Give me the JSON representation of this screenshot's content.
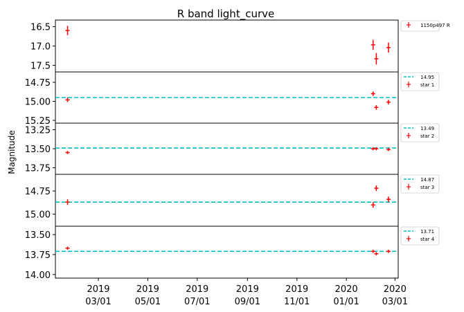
{
  "chart_data": {
    "type": "scatter",
    "title": "R band light_curve",
    "ylabel": "Magnitude",
    "x_range": [
      "2019-01-07",
      "2020-03-05"
    ],
    "x_ticks": [
      {
        "date": "2019-03-01",
        "label": [
          "2019",
          "03/01"
        ]
      },
      {
        "date": "2019-05-01",
        "label": [
          "2019",
          "05/01"
        ]
      },
      {
        "date": "2019-07-01",
        "label": [
          "2019",
          "07/01"
        ]
      },
      {
        "date": "2019-09-01",
        "label": [
          "2019",
          "09/01"
        ]
      },
      {
        "date": "2019-11-01",
        "label": [
          "2019",
          "11/01"
        ]
      },
      {
        "date": "2020-01-01",
        "label": [
          "2020",
          "01/01"
        ]
      },
      {
        "date": "2020-03-01",
        "label": [
          "2020",
          "03/01"
        ]
      }
    ],
    "y_inverted": true,
    "panels": [
      {
        "series_name": "1150p497 R",
        "ylim": [
          16.4,
          17.6
        ],
        "yticks": [
          16.5,
          17.0,
          17.5
        ],
        "ytick_labels": [
          "16.5",
          "17.0",
          "17.5"
        ],
        "points": [
          {
            "x": "2019-01-22",
            "y": 16.6,
            "yerr": 0.12
          },
          {
            "x": "2020-02-03",
            "y": 16.97,
            "yerr": 0.13
          },
          {
            "x": "2020-02-07",
            "y": 17.33,
            "yerr": 0.15
          },
          {
            "x": "2020-02-22",
            "y": 17.04,
            "yerr": 0.13
          }
        ]
      },
      {
        "series_name": "star 1",
        "reference": 14.95,
        "reference_label": "14.95",
        "ylim": [
          14.65,
          15.25
        ],
        "yticks": [
          14.75,
          15.0,
          15.25
        ],
        "ytick_labels": [
          "14.75",
          "15.00",
          "15.25"
        ],
        "points": [
          {
            "x": "2019-01-22",
            "y": 14.98,
            "yerr": 0.03
          },
          {
            "x": "2020-02-03",
            "y": 14.9,
            "yerr": 0.03
          },
          {
            "x": "2020-02-07",
            "y": 15.08,
            "yerr": 0.03
          },
          {
            "x": "2020-02-22",
            "y": 15.01,
            "yerr": 0.03
          }
        ]
      },
      {
        "series_name": "star 2",
        "reference": 13.49,
        "reference_label": "13.49",
        "ylim": [
          13.2,
          13.8
        ],
        "yticks": [
          13.25,
          13.5,
          13.75
        ],
        "ytick_labels": [
          "13.25",
          "13.50",
          "13.75"
        ],
        "points": [
          {
            "x": "2019-01-22",
            "y": 13.55,
            "yerr": 0.02
          },
          {
            "x": "2020-02-03",
            "y": 13.5,
            "yerr": 0.02
          },
          {
            "x": "2020-02-07",
            "y": 13.5,
            "yerr": 0.02
          },
          {
            "x": "2020-02-22",
            "y": 13.51,
            "yerr": 0.02
          }
        ]
      },
      {
        "series_name": "star 3",
        "reference": 14.87,
        "reference_label": "14.87",
        "ylim": [
          14.6,
          15.1
        ],
        "yticks": [
          14.75,
          15.0
        ],
        "ytick_labels": [
          "14.75",
          "15.00"
        ],
        "points": [
          {
            "x": "2019-01-22",
            "y": 14.87,
            "yerr": 0.03
          },
          {
            "x": "2020-02-03",
            "y": 14.9,
            "yerr": 0.03
          },
          {
            "x": "2020-02-07",
            "y": 14.72,
            "yerr": 0.03
          },
          {
            "x": "2020-02-22",
            "y": 14.84,
            "yerr": 0.03
          }
        ]
      },
      {
        "series_name": "star 4",
        "reference": 13.71,
        "reference_label": "13.71",
        "ylim": [
          13.43,
          14.01
        ],
        "yticks": [
          13.5,
          13.75,
          14.0
        ],
        "ytick_labels": [
          "13.50",
          "13.75",
          "14.00"
        ],
        "points": [
          {
            "x": "2019-01-22",
            "y": 13.67,
            "yerr": 0.02
          },
          {
            "x": "2020-02-03",
            "y": 13.71,
            "yerr": 0.02
          },
          {
            "x": "2020-02-07",
            "y": 13.74,
            "yerr": 0.02
          },
          {
            "x": "2020-02-22",
            "y": 13.71,
            "yerr": 0.02
          }
        ]
      }
    ],
    "colors": {
      "points": "#ff0000",
      "reference": "#00bfbf"
    },
    "grid": false,
    "legend_placement": "outside-right"
  }
}
